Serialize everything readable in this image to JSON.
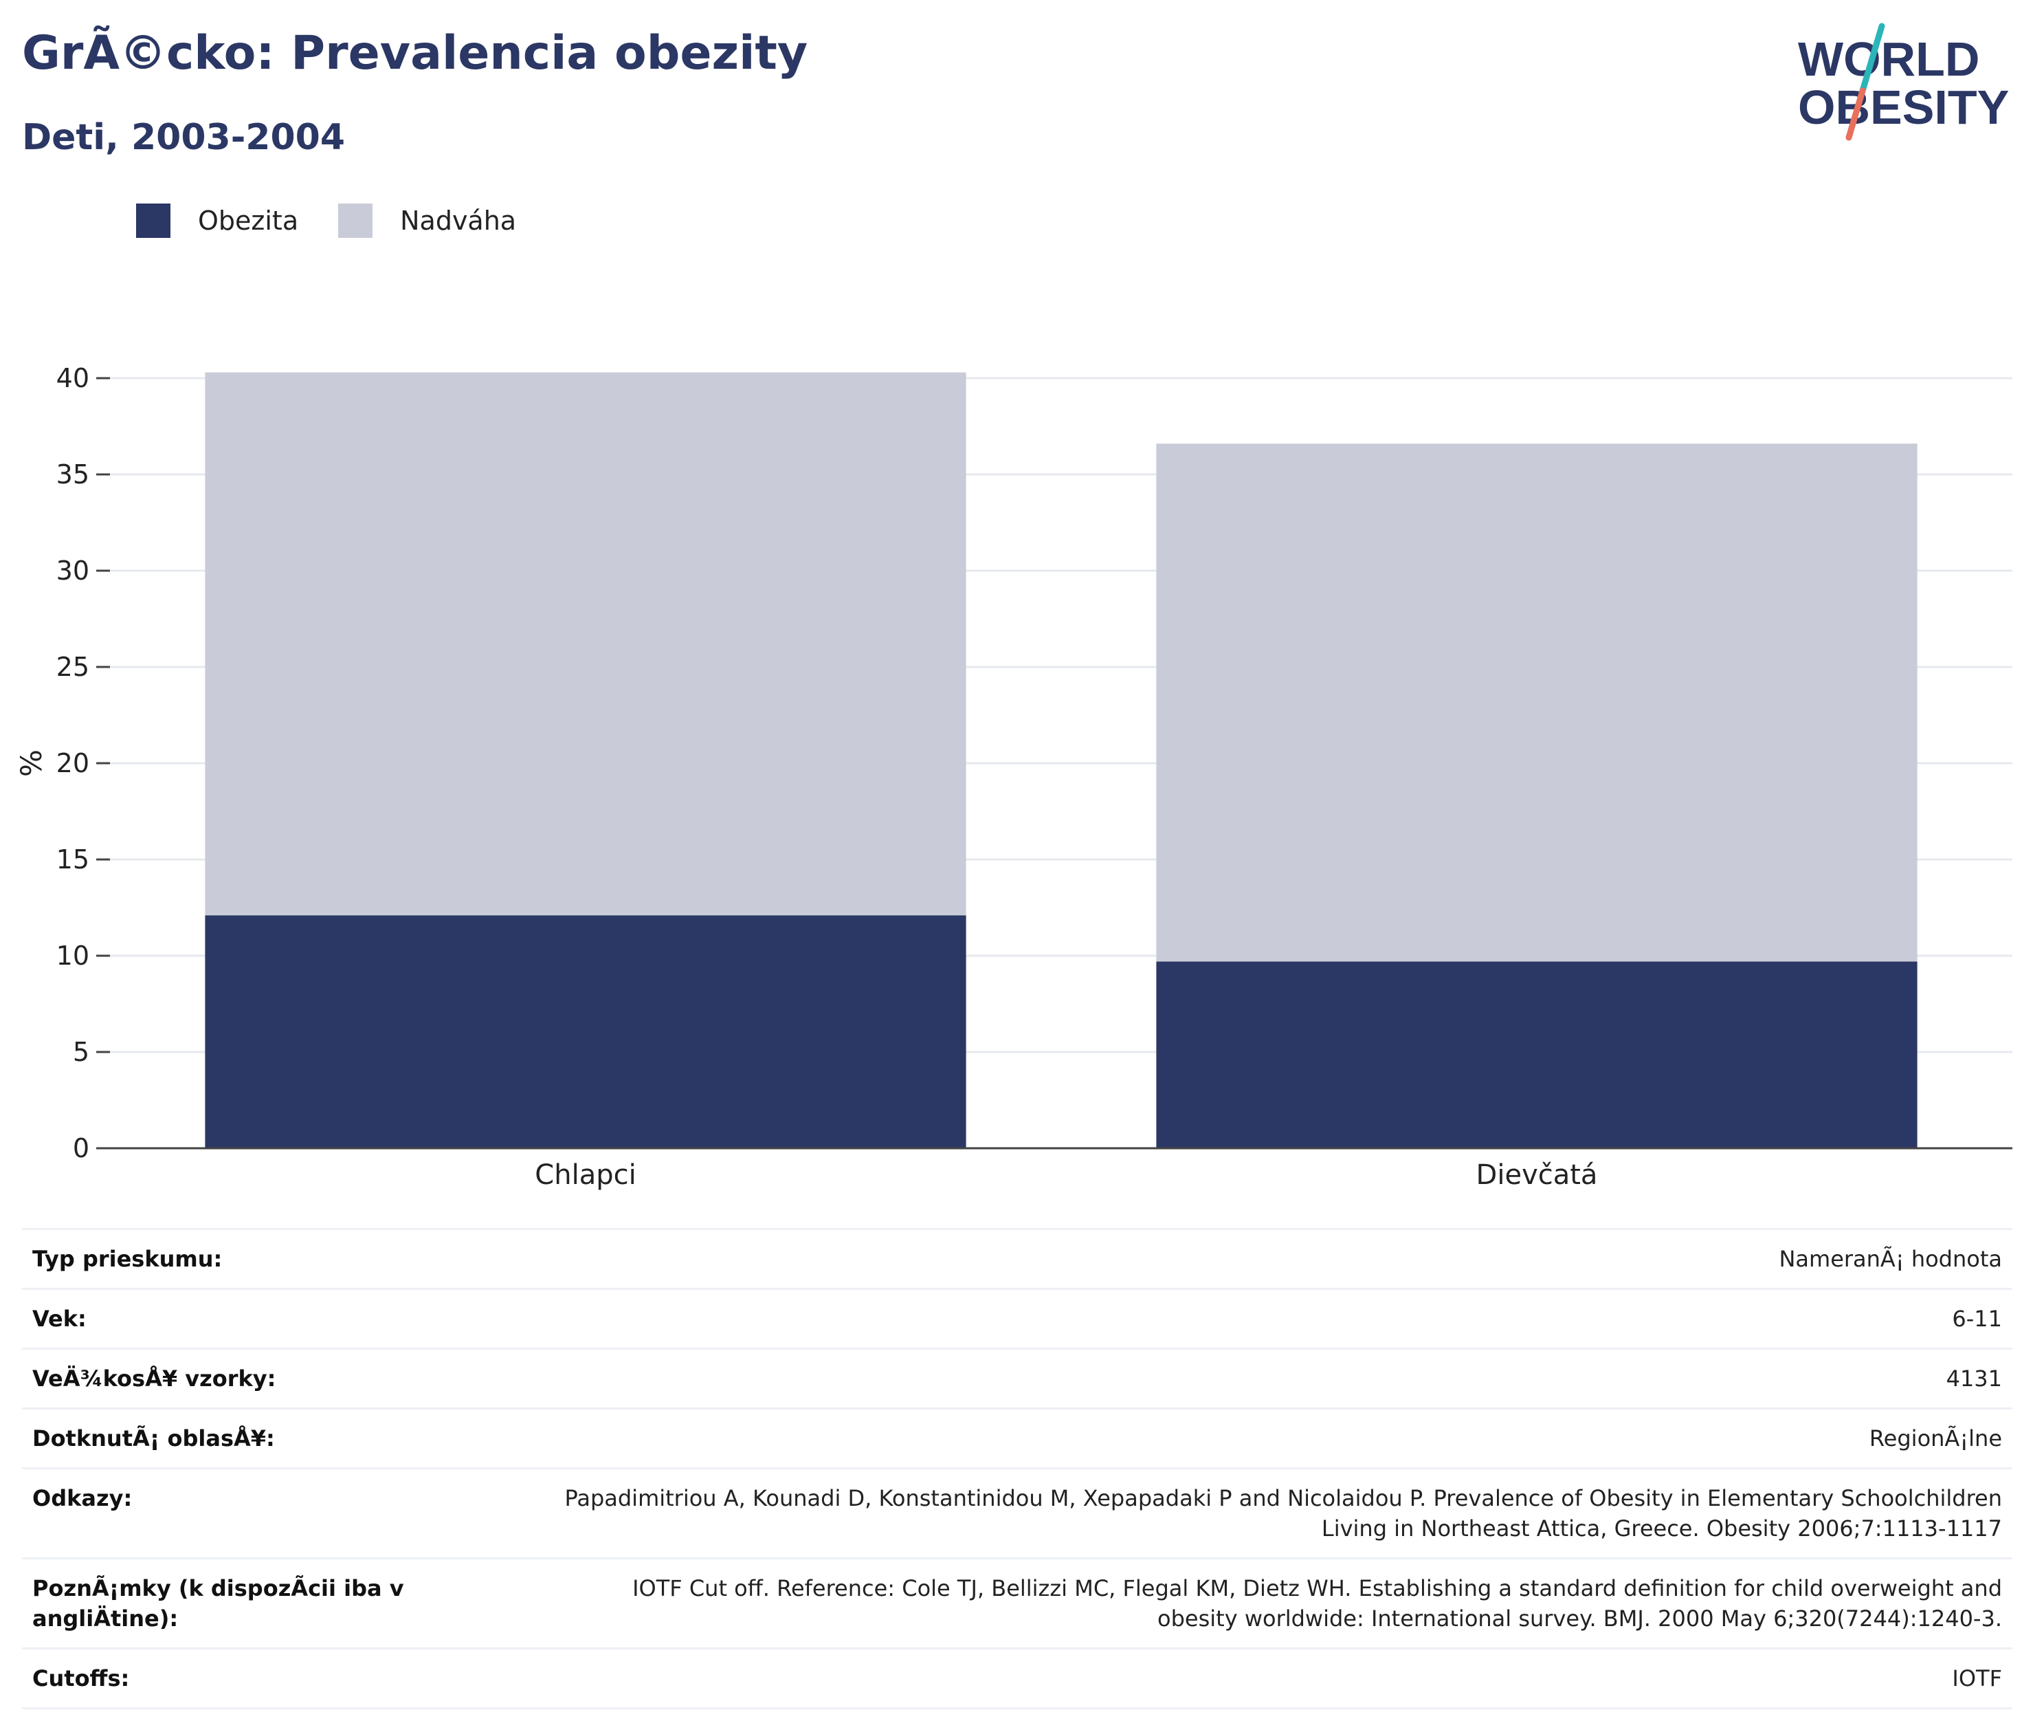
{
  "header": {
    "title": "GrÃ©cko: Prevalencia obezity",
    "subtitle": "Deti, 2003-2004"
  },
  "logo": {
    "line1": "WORLD",
    "line2": "OBESITY"
  },
  "colors": {
    "obesity": "#2b3764",
    "overweight": "#c9ccd8",
    "title": "#2b3764"
  },
  "legend": [
    {
      "label": "Obezita",
      "color": "#2b3764"
    },
    {
      "label": "Nadváha",
      "color": "#c9ccd8"
    }
  ],
  "chart_data": {
    "type": "bar",
    "stacked": true,
    "categories": [
      "Chlapci",
      "Dievčatá"
    ],
    "series": [
      {
        "name": "Obezita",
        "values": [
          12.1,
          9.7
        ]
      },
      {
        "name": "Nadváha",
        "values": [
          28.2,
          26.9
        ]
      }
    ],
    "title": "",
    "xlabel": "",
    "ylabel": "%",
    "ylim": [
      0,
      40
    ],
    "yticks": [
      0,
      5,
      10,
      15,
      20,
      25,
      30,
      35,
      40
    ],
    "grid": true,
    "legend_position": "top-left"
  },
  "details": [
    {
      "label": "Typ prieskumu:",
      "value": "NameranÃ¡ hodnota"
    },
    {
      "label": "Vek:",
      "value": "6-11"
    },
    {
      "label": "VeÄ¾kosÅ¥ vzorky:",
      "value": "4131"
    },
    {
      "label": "DotknutÃ¡ oblasÅ¥:",
      "value": "RegionÃ¡lne"
    },
    {
      "label": "Odkazy:",
      "value": "Papadimitriou A, Kounadi D, Konstantinidou M, Xepapadaki P and Nicolaidou P. Prevalence of Obesity in Elementary Schoolchildren Living in Northeast Attica, Greece. Obesity 2006;7:1113-1117"
    },
    {
      "label": "PoznÃ¡mky (k dispozÃcii iba v angliÄtine):",
      "value": "IOTF Cut off. Reference: Cole TJ, Bellizzi MC, Flegal KM, Dietz WH. Establishing a standard definition for child overweight and obesity worldwide: International survey. BMJ. 2000 May 6;320(7244):1240-3."
    },
    {
      "label": "Cutoffs:",
      "value": "IOTF"
    }
  ]
}
